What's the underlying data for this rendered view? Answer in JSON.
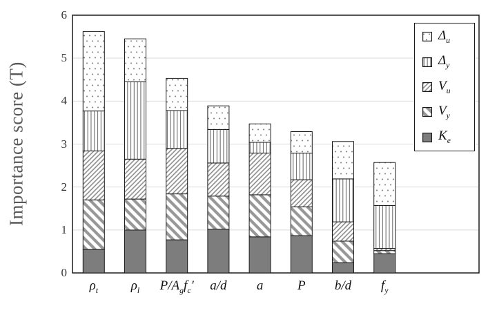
{
  "chart_data": {
    "type": "bar",
    "stacked": true,
    "title": "",
    "xlabel": "",
    "ylabel": "Importance score (T)",
    "ylim": [
      0,
      6
    ],
    "yticks": [
      0,
      1,
      2,
      3,
      4,
      5,
      6
    ],
    "grid": true,
    "legend_position": "top-right",
    "legend_order": [
      "Delta_u",
      "Delta_y",
      "V_u",
      "V_y",
      "K_e"
    ],
    "categories": [
      "rho_t",
      "rho_l",
      "P/A_g f_c'",
      "a/d",
      "a",
      "P",
      "b/d",
      "f_y"
    ],
    "categories_rich": [
      [
        {
          "t": "ρ"
        },
        {
          "t": "t",
          "sub": true
        }
      ],
      [
        {
          "t": "ρ"
        },
        {
          "t": "l",
          "sub": true
        }
      ],
      [
        {
          "t": "P/A"
        },
        {
          "t": "g",
          "sub": true
        },
        {
          "t": "f"
        },
        {
          "t": "c",
          "sub": true
        },
        {
          "t": "′"
        }
      ],
      [
        {
          "t": "a/d"
        }
      ],
      [
        {
          "t": "a"
        }
      ],
      [
        {
          "t": "P"
        }
      ],
      [
        {
          "t": "b/d"
        }
      ],
      [
        {
          "t": "f"
        },
        {
          "t": "y",
          "sub": true
        }
      ]
    ],
    "series": [
      {
        "name": "K_e",
        "name_rich": [
          {
            "t": "K"
          },
          {
            "t": "e",
            "sub": true
          }
        ],
        "pattern": "solid-gray",
        "values": [
          0.55,
          1.0,
          0.77,
          1.02,
          0.84,
          0.87,
          0.24,
          0.45
        ]
      },
      {
        "name": "V_y",
        "name_rich": [
          {
            "t": "V"
          },
          {
            "t": "y",
            "sub": true
          }
        ],
        "pattern": "backslash-hatch",
        "values": [
          1.15,
          0.72,
          1.07,
          0.77,
          0.98,
          0.67,
          0.5,
          0.07
        ]
      },
      {
        "name": "V_u",
        "name_rich": [
          {
            "t": "V"
          },
          {
            "t": "u",
            "sub": true
          }
        ],
        "pattern": "slash-hatch",
        "values": [
          1.14,
          0.93,
          1.06,
          0.77,
          0.97,
          0.63,
          0.45,
          0.05
        ]
      },
      {
        "name": "Delta_y",
        "name_rich": [
          {
            "t": "Δ"
          },
          {
            "t": "y",
            "sub": true
          }
        ],
        "pattern": "vertical-lines",
        "values": [
          0.93,
          1.8,
          0.88,
          0.78,
          0.25,
          0.62,
          1.0,
          1.0
        ]
      },
      {
        "name": "Delta_u",
        "name_rich": [
          {
            "t": "Δ"
          },
          {
            "t": "u",
            "sub": true
          }
        ],
        "pattern": "dots",
        "values": [
          1.85,
          1.0,
          0.75,
          0.55,
          0.43,
          0.5,
          0.87,
          1.0
        ]
      }
    ],
    "stack_totals": [
      5.62,
      5.45,
      4.53,
      3.89,
      3.47,
      3.29,
      3.06,
      2.57
    ],
    "colors": {
      "background": "#ffffff",
      "bar_fill_gray": "#7d7d7d",
      "hatch_gray": "#8c8c8c",
      "thick_hatch_gray": "#979797",
      "dot_gray": "#7a7a7a",
      "vline_gray": "#6e6e6e",
      "outline": "#1a1a1a",
      "gridline": "#d9d9d9",
      "axis_title_text": "#595959",
      "tick_text": "#333333"
    }
  }
}
